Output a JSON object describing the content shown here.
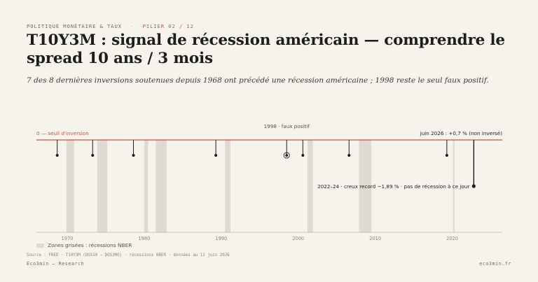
{
  "header": {
    "category": "POLITIQUE MONÉTAIRE & TAUX",
    "separator": "·",
    "pillar": "PILIER 02 / 12",
    "title": "T10Y3M : signal de récession américain — comprendre le spread 10 ans / 3 mois",
    "subtitle": "7 des 8 dernières inversions soutenues depuis 1968 ont précédé une récession américaine ; 1998 reste le seul faux positif."
  },
  "chart_data": {
    "type": "line",
    "xlim": [
      1966,
      2026.5
    ],
    "x_ticks": [
      1970,
      1980,
      1990,
      2000,
      2010,
      2020
    ],
    "threshold": {
      "value": 0,
      "label": "0 — seuil d'inversion"
    },
    "recessions": [
      [
        1969.9,
        1970.9
      ],
      [
        1973.9,
        1975.2
      ],
      [
        1980.0,
        1980.5
      ],
      [
        1981.5,
        1982.9
      ],
      [
        1990.5,
        1991.2
      ],
      [
        2001.2,
        2001.9
      ],
      [
        2007.9,
        2009.5
      ],
      [
        2020.1,
        2020.3
      ]
    ],
    "inversions": [
      {
        "year": 1968.7,
        "type": "signal"
      },
      {
        "year": 1973.3,
        "type": "signal"
      },
      {
        "year": 1978.6,
        "type": "signal"
      },
      {
        "year": 1989.3,
        "type": "signal"
      },
      {
        "year": 1998.5,
        "type": "false",
        "label": "1998 · faux positif"
      },
      {
        "year": 2000.6,
        "type": "signal"
      },
      {
        "year": 2006.6,
        "type": "signal"
      },
      {
        "year": 2019.3,
        "type": "signal"
      },
      {
        "year": 2022.8,
        "type": "record",
        "label": "2022–24 · creux record −1,89 % · pas de récession à ce jour"
      }
    ],
    "current": {
      "label": "juin 2026 : +0,7 % (non inversé)"
    }
  },
  "legend": {
    "recession": "Zones grisées : récessions NBER"
  },
  "footer": {
    "source": "Source : FRED · T10Y3M (DGS10 − DGS3MO) · récessions NBER · données au 12 juin 2026",
    "brand": "Eco3min — Research",
    "site": "eco3min.fr"
  },
  "colors": {
    "background": "#f6f3ec",
    "accent": "#c8553d",
    "ink": "#1d1d1b",
    "recession": "#dedad1",
    "axis": "#b9b4aa"
  }
}
